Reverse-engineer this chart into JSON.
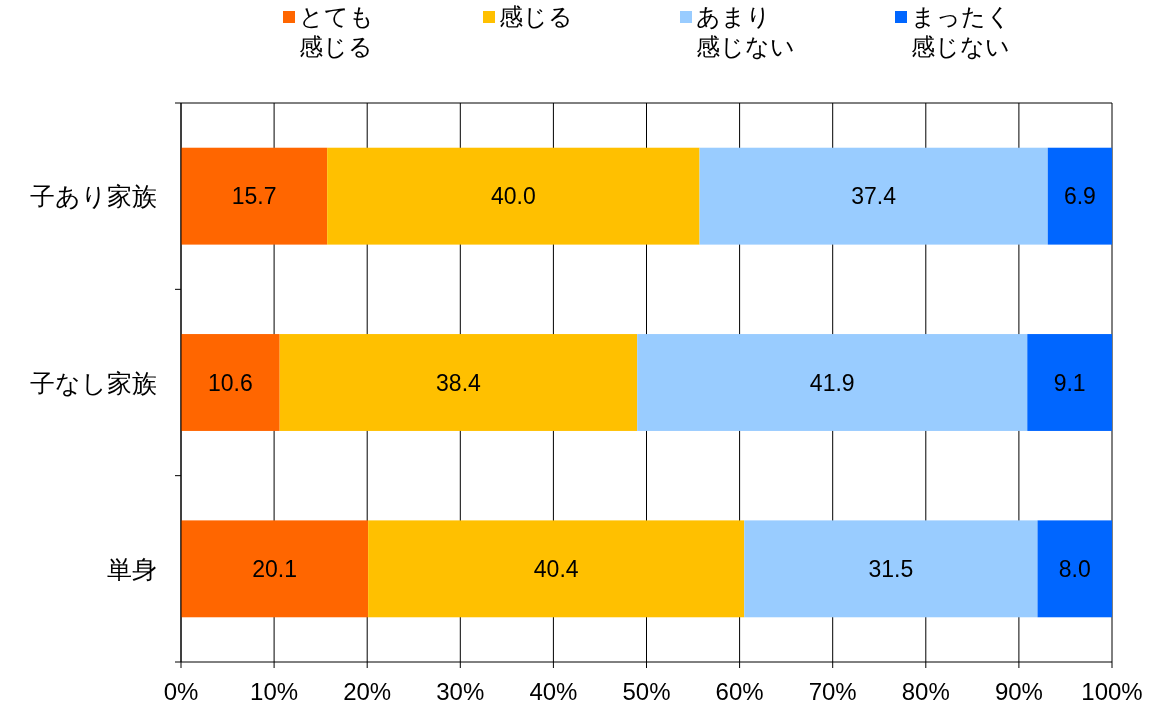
{
  "chart_data": {
    "type": "bar",
    "orientation": "horizontal",
    "stacked": true,
    "categories": [
      "子あり家族",
      "子なし家族",
      "単身"
    ],
    "series": [
      {
        "name": "とても感じる",
        "color": "#ff6600",
        "values": [
          15.7,
          10.6,
          20.1
        ],
        "value_labels": [
          "15.7",
          "10.6",
          "20.1"
        ]
      },
      {
        "name": "感じる",
        "color": "#ffc000",
        "values": [
          40.0,
          38.4,
          40.4
        ],
        "value_labels": [
          "40.0",
          "38.4",
          "40.4"
        ]
      },
      {
        "name": "あまり感じない",
        "color": "#99ccff",
        "values": [
          37.4,
          41.9,
          31.5
        ],
        "value_labels": [
          "37.4",
          "41.9",
          "31.5"
        ]
      },
      {
        "name": "まったく感じない",
        "color": "#0066ff",
        "values": [
          6.9,
          9.1,
          8.0
        ],
        "value_labels": [
          "6.9",
          "9.1",
          "8.0"
        ]
      }
    ],
    "xlim": [
      0,
      100
    ],
    "xticks": [
      {
        "value": 0,
        "label": "0%"
      },
      {
        "value": 10,
        "label": "10%"
      },
      {
        "value": 20,
        "label": "20%"
      },
      {
        "value": 30,
        "label": "30%"
      },
      {
        "value": 40,
        "label": "40%"
      },
      {
        "value": 50,
        "label": "50%"
      },
      {
        "value": 60,
        "label": "60%"
      },
      {
        "value": 70,
        "label": "70%"
      },
      {
        "value": 80,
        "label": "80%"
      },
      {
        "value": 90,
        "label": "90%"
      },
      {
        "value": 100,
        "label": "100%"
      }
    ],
    "grid": "x",
    "legend": "top"
  }
}
